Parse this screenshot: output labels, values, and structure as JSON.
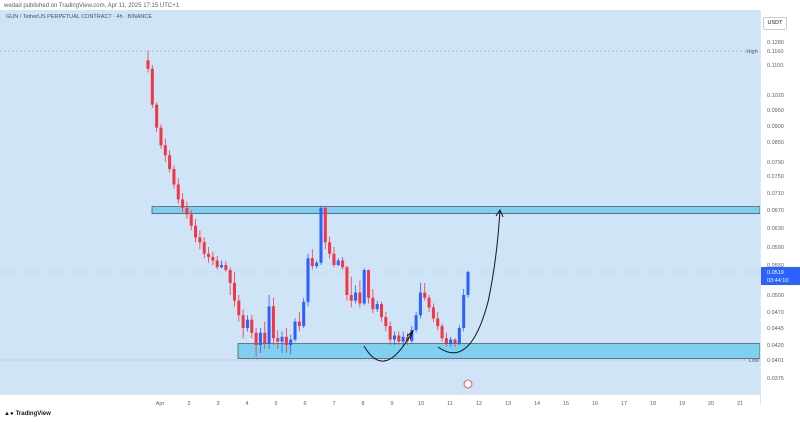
{
  "header": {
    "published": "wedad published on TradingView.com, Apr 11, 2025 17:15 UTC+1",
    "symbol": "GUN / TetherUS PERPETUAL CONTRACT · 4h · BINANCE"
  },
  "price_axis": {
    "currency": "USDT",
    "high_label": "High",
    "low_label": "Low",
    "current_price": "0.0519",
    "countdown": "03:44:10"
  },
  "footer": {
    "brand": "TradingView"
  },
  "colors": {
    "background": "#cfe5f7",
    "up": "#2962ff",
    "down": "#f23645",
    "zone_fill": "#7fd0ee",
    "zone_border": "#2b3040"
  },
  "chart_data": {
    "type": "candlestick",
    "y_ticks": [
      "0.1280",
      "0.1160",
      "0.1100",
      "0.1020",
      "0.0950",
      "0.0900",
      "0.0850",
      "0.0790",
      "0.0750",
      "0.0710",
      "0.0670",
      "0.0630",
      "0.0590",
      "0.0550",
      "0.0519",
      "0.0500",
      "0.0470",
      "0.0445",
      "0.0420",
      "0.0401",
      "0.0375"
    ],
    "x_ticks": [
      "Apr",
      "2",
      "3",
      "4",
      "5",
      "6",
      "7",
      "8",
      "9",
      "10",
      "11",
      "12",
      "13",
      "14",
      "15",
      "16",
      "17",
      "18",
      "19",
      "20",
      "21"
    ],
    "high": 0.116,
    "low": 0.0401,
    "last": 0.0519,
    "resistance_zone": [
      0.0665,
      0.0678
    ],
    "support_zone": [
      0.0403,
      0.0422
    ],
    "candles": [
      {
        "o": 0.112,
        "h": 0.116,
        "l": 0.108,
        "c": 0.109
      },
      {
        "o": 0.109,
        "h": 0.11,
        "l": 0.096,
        "c": 0.0975
      },
      {
        "o": 0.0975,
        "h": 0.0985,
        "l": 0.088,
        "c": 0.0895
      },
      {
        "o": 0.0895,
        "h": 0.0905,
        "l": 0.083,
        "c": 0.084
      },
      {
        "o": 0.084,
        "h": 0.086,
        "l": 0.079,
        "c": 0.081
      },
      {
        "o": 0.081,
        "h": 0.0825,
        "l": 0.076,
        "c": 0.077
      },
      {
        "o": 0.077,
        "h": 0.078,
        "l": 0.072,
        "c": 0.073
      },
      {
        "o": 0.073,
        "h": 0.0745,
        "l": 0.0685,
        "c": 0.0695
      },
      {
        "o": 0.0695,
        "h": 0.071,
        "l": 0.0665,
        "c": 0.0675
      },
      {
        "o": 0.0675,
        "h": 0.069,
        "l": 0.065,
        "c": 0.066
      },
      {
        "o": 0.066,
        "h": 0.067,
        "l": 0.0625,
        "c": 0.0635
      },
      {
        "o": 0.0635,
        "h": 0.065,
        "l": 0.06,
        "c": 0.061
      },
      {
        "o": 0.061,
        "h": 0.0625,
        "l": 0.0585,
        "c": 0.06
      },
      {
        "o": 0.06,
        "h": 0.061,
        "l": 0.0565,
        "c": 0.0575
      },
      {
        "o": 0.0575,
        "h": 0.059,
        "l": 0.0555,
        "c": 0.0568
      },
      {
        "o": 0.0568,
        "h": 0.058,
        "l": 0.055,
        "c": 0.056
      },
      {
        "o": 0.056,
        "h": 0.057,
        "l": 0.053,
        "c": 0.054
      },
      {
        "o": 0.054,
        "h": 0.056,
        "l": 0.0535,
        "c": 0.055
      },
      {
        "o": 0.055,
        "h": 0.0558,
        "l": 0.052,
        "c": 0.0528
      },
      {
        "o": 0.0528,
        "h": 0.054,
        "l": 0.05,
        "c": 0.051
      },
      {
        "o": 0.051,
        "h": 0.052,
        "l": 0.048,
        "c": 0.049
      },
      {
        "o": 0.049,
        "h": 0.05,
        "l": 0.0455,
        "c": 0.0465
      },
      {
        "o": 0.0465,
        "h": 0.0475,
        "l": 0.043,
        "c": 0.0445
      },
      {
        "o": 0.0445,
        "h": 0.0465,
        "l": 0.044,
        "c": 0.0458
      },
      {
        "o": 0.0458,
        "h": 0.0465,
        "l": 0.043,
        "c": 0.0438
      },
      {
        "o": 0.0438,
        "h": 0.0445,
        "l": 0.0405,
        "c": 0.042
      },
      {
        "o": 0.042,
        "h": 0.0445,
        "l": 0.041,
        "c": 0.0438
      },
      {
        "o": 0.0438,
        "h": 0.0455,
        "l": 0.0415,
        "c": 0.0422
      },
      {
        "o": 0.0422,
        "h": 0.05,
        "l": 0.0415,
        "c": 0.048
      },
      {
        "o": 0.048,
        "h": 0.0495,
        "l": 0.042,
        "c": 0.043
      },
      {
        "o": 0.043,
        "h": 0.0442,
        "l": 0.0415,
        "c": 0.0425
      },
      {
        "o": 0.0425,
        "h": 0.044,
        "l": 0.041,
        "c": 0.0432
      },
      {
        "o": 0.0432,
        "h": 0.0445,
        "l": 0.041,
        "c": 0.042
      },
      {
        "o": 0.042,
        "h": 0.0435,
        "l": 0.0408,
        "c": 0.0428
      },
      {
        "o": 0.0428,
        "h": 0.046,
        "l": 0.0425,
        "c": 0.0455
      },
      {
        "o": 0.0455,
        "h": 0.047,
        "l": 0.044,
        "c": 0.0448
      },
      {
        "o": 0.0448,
        "h": 0.0495,
        "l": 0.0445,
        "c": 0.0488
      },
      {
        "o": 0.0488,
        "h": 0.0575,
        "l": 0.048,
        "c": 0.0565
      },
      {
        "o": 0.0565,
        "h": 0.0585,
        "l": 0.053,
        "c": 0.0545
      },
      {
        "o": 0.0545,
        "h": 0.056,
        "l": 0.0535,
        "c": 0.0555
      },
      {
        "o": 0.0555,
        "h": 0.068,
        "l": 0.055,
        "c": 0.0675
      },
      {
        "o": 0.0675,
        "h": 0.068,
        "l": 0.0585,
        "c": 0.06
      },
      {
        "o": 0.06,
        "h": 0.0612,
        "l": 0.0565,
        "c": 0.0575
      },
      {
        "o": 0.0575,
        "h": 0.059,
        "l": 0.054,
        "c": 0.055
      },
      {
        "o": 0.055,
        "h": 0.0565,
        "l": 0.0545,
        "c": 0.056
      },
      {
        "o": 0.056,
        "h": 0.0568,
        "l": 0.053,
        "c": 0.054
      },
      {
        "o": 0.054,
        "h": 0.0548,
        "l": 0.049,
        "c": 0.05
      },
      {
        "o": 0.05,
        "h": 0.0515,
        "l": 0.0478,
        "c": 0.049
      },
      {
        "o": 0.049,
        "h": 0.0508,
        "l": 0.0485,
        "c": 0.0502
      },
      {
        "o": 0.0502,
        "h": 0.0512,
        "l": 0.0478,
        "c": 0.0485
      },
      {
        "o": 0.0485,
        "h": 0.0535,
        "l": 0.0482,
        "c": 0.0528
      },
      {
        "o": 0.0528,
        "h": 0.053,
        "l": 0.0485,
        "c": 0.0495
      },
      {
        "o": 0.0495,
        "h": 0.0505,
        "l": 0.0468,
        "c": 0.0475
      },
      {
        "o": 0.0475,
        "h": 0.049,
        "l": 0.047,
        "c": 0.0484
      },
      {
        "o": 0.0484,
        "h": 0.0488,
        "l": 0.0455,
        "c": 0.0462
      },
      {
        "o": 0.0462,
        "h": 0.047,
        "l": 0.044,
        "c": 0.0448
      },
      {
        "o": 0.0448,
        "h": 0.0455,
        "l": 0.042,
        "c": 0.0428
      },
      {
        "o": 0.0428,
        "h": 0.044,
        "l": 0.042,
        "c": 0.0434
      },
      {
        "o": 0.0434,
        "h": 0.044,
        "l": 0.042,
        "c": 0.0425
      },
      {
        "o": 0.0425,
        "h": 0.044,
        "l": 0.0418,
        "c": 0.0432
      },
      {
        "o": 0.0432,
        "h": 0.0438,
        "l": 0.042,
        "c": 0.0426
      },
      {
        "o": 0.0426,
        "h": 0.0448,
        "l": 0.0423,
        "c": 0.0442
      },
      {
        "o": 0.0442,
        "h": 0.047,
        "l": 0.0438,
        "c": 0.0465
      },
      {
        "o": 0.0465,
        "h": 0.051,
        "l": 0.046,
        "c": 0.0502
      },
      {
        "o": 0.0502,
        "h": 0.051,
        "l": 0.049,
        "c": 0.0495
      },
      {
        "o": 0.0495,
        "h": 0.05,
        "l": 0.047,
        "c": 0.0478
      },
      {
        "o": 0.0478,
        "h": 0.0485,
        "l": 0.0455,
        "c": 0.046
      },
      {
        "o": 0.046,
        "h": 0.047,
        "l": 0.0442,
        "c": 0.0448
      },
      {
        "o": 0.0448,
        "h": 0.0452,
        "l": 0.0425,
        "c": 0.043
      },
      {
        "o": 0.043,
        "h": 0.0438,
        "l": 0.0418,
        "c": 0.0422
      },
      {
        "o": 0.0422,
        "h": 0.0432,
        "l": 0.0418,
        "c": 0.0428
      },
      {
        "o": 0.0428,
        "h": 0.043,
        "l": 0.0418,
        "c": 0.0422
      },
      {
        "o": 0.0422,
        "h": 0.045,
        "l": 0.042,
        "c": 0.0445
      },
      {
        "o": 0.0445,
        "h": 0.0505,
        "l": 0.044,
        "c": 0.05
      },
      {
        "o": 0.05,
        "h": 0.0525,
        "l": 0.0495,
        "c": 0.0519
      }
    ]
  }
}
